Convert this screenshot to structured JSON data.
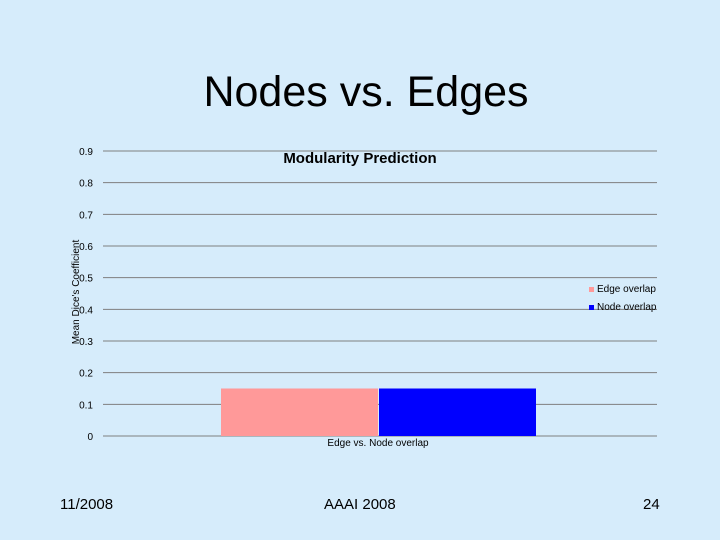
{
  "slide": {
    "title": "Nodes vs. Edges",
    "footer_left": "11/2008",
    "footer_center": "AAAI 2008",
    "footer_right": "24"
  },
  "colors": {
    "background": "#d6ecfb",
    "edge_overlap": "#ff9999",
    "node_overlap": "#0000ff"
  },
  "chart_data": {
    "type": "bar",
    "title": "Modularity Prediction",
    "xlabel": "Edge vs. Node overlap",
    "ylabel": "Mean Dice's Coefficient",
    "ylim": [
      0,
      0.9
    ],
    "yticks": [
      "0",
      "0.1",
      "0.2",
      "0.3",
      "0.4",
      "0.5",
      "0.6",
      "0.7",
      "0.8",
      "0.9"
    ],
    "grid": true,
    "legend_position": "right",
    "categories": [
      "Edge vs. Node overlap"
    ],
    "series": [
      {
        "name": "Edge overlap",
        "values": [
          0.15
        ]
      },
      {
        "name": "Node overlap",
        "values": [
          0.15
        ]
      }
    ]
  }
}
